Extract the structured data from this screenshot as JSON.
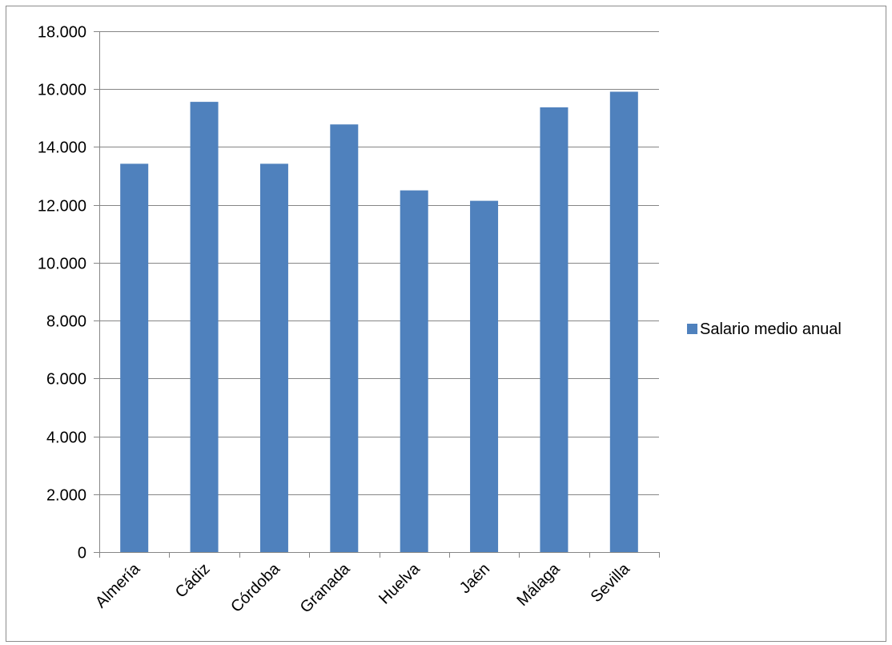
{
  "chart_data": {
    "type": "bar",
    "title": "",
    "xlabel": "",
    "ylabel": "",
    "categories": [
      "Almería",
      "Cádiz",
      "Córdoba",
      "Granada",
      "Huelva",
      "Jaén",
      "Málaga",
      "Sevilla"
    ],
    "series": [
      {
        "name": "Salario medio anual",
        "color": "#4f81bd",
        "values": [
          13420,
          15560,
          13420,
          14780,
          12500,
          12140,
          15370,
          15910
        ]
      }
    ],
    "ylim": [
      0,
      18000
    ],
    "yticks": [
      0,
      2000,
      4000,
      6000,
      8000,
      10000,
      12000,
      14000,
      16000,
      18000
    ],
    "ytick_labels": [
      "0",
      "2.000",
      "4.000",
      "6.000",
      "8.000",
      "10.000",
      "12.000",
      "14.000",
      "16.000",
      "18.000"
    ],
    "grid": true,
    "legend_position": "right"
  }
}
